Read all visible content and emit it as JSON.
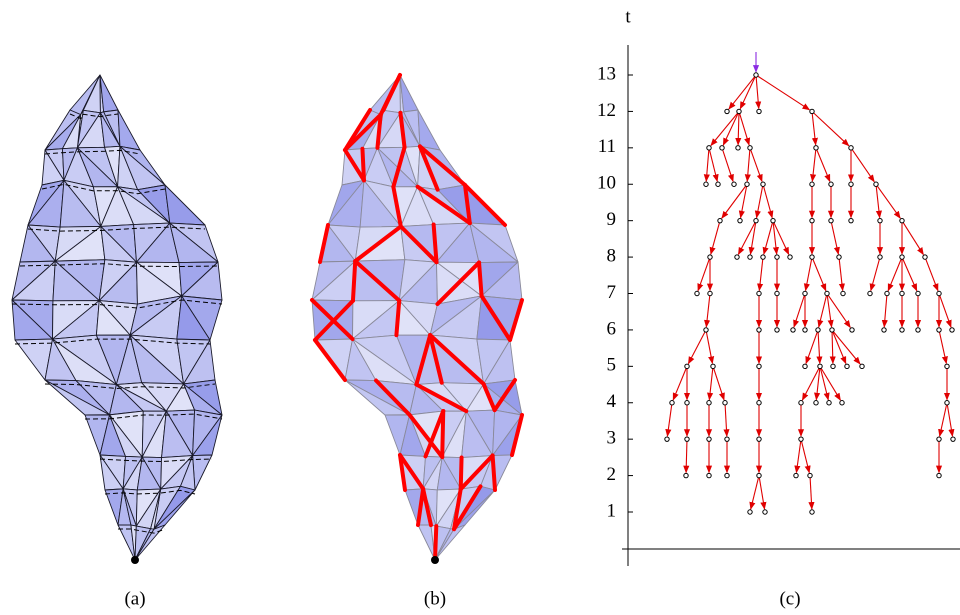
{
  "panels": [
    {
      "label": "(a)"
    },
    {
      "label": "(b)"
    },
    {
      "label": "(c)"
    }
  ],
  "tree": {
    "axis_label": "t",
    "ticks": [
      1,
      2,
      3,
      4,
      5,
      6,
      7,
      8,
      9,
      10,
      11,
      12,
      13
    ],
    "nodes": [
      13,
      12,
      12,
      12,
      12,
      11,
      11,
      11,
      11,
      11,
      11,
      10,
      10,
      10,
      10,
      10,
      10,
      10,
      10,
      10,
      9,
      9,
      9,
      9,
      9,
      9,
      9,
      9,
      9,
      8,
      8,
      8,
      8,
      8,
      8,
      8,
      8,
      8,
      8,
      8,
      7,
      7,
      7,
      7,
      7,
      7,
      7,
      7,
      7,
      7,
      7,
      7,
      6,
      6,
      6,
      6,
      6,
      6,
      6,
      6,
      6,
      6,
      6,
      6,
      6,
      5,
      5,
      5,
      5,
      5,
      5,
      5,
      5,
      5,
      4,
      4,
      4,
      4,
      4,
      4,
      4,
      4,
      4,
      4,
      3,
      3,
      3,
      3,
      3,
      3,
      3,
      3,
      2,
      2,
      2,
      2,
      2,
      2,
      2,
      1,
      1,
      1
    ]
  }
}
